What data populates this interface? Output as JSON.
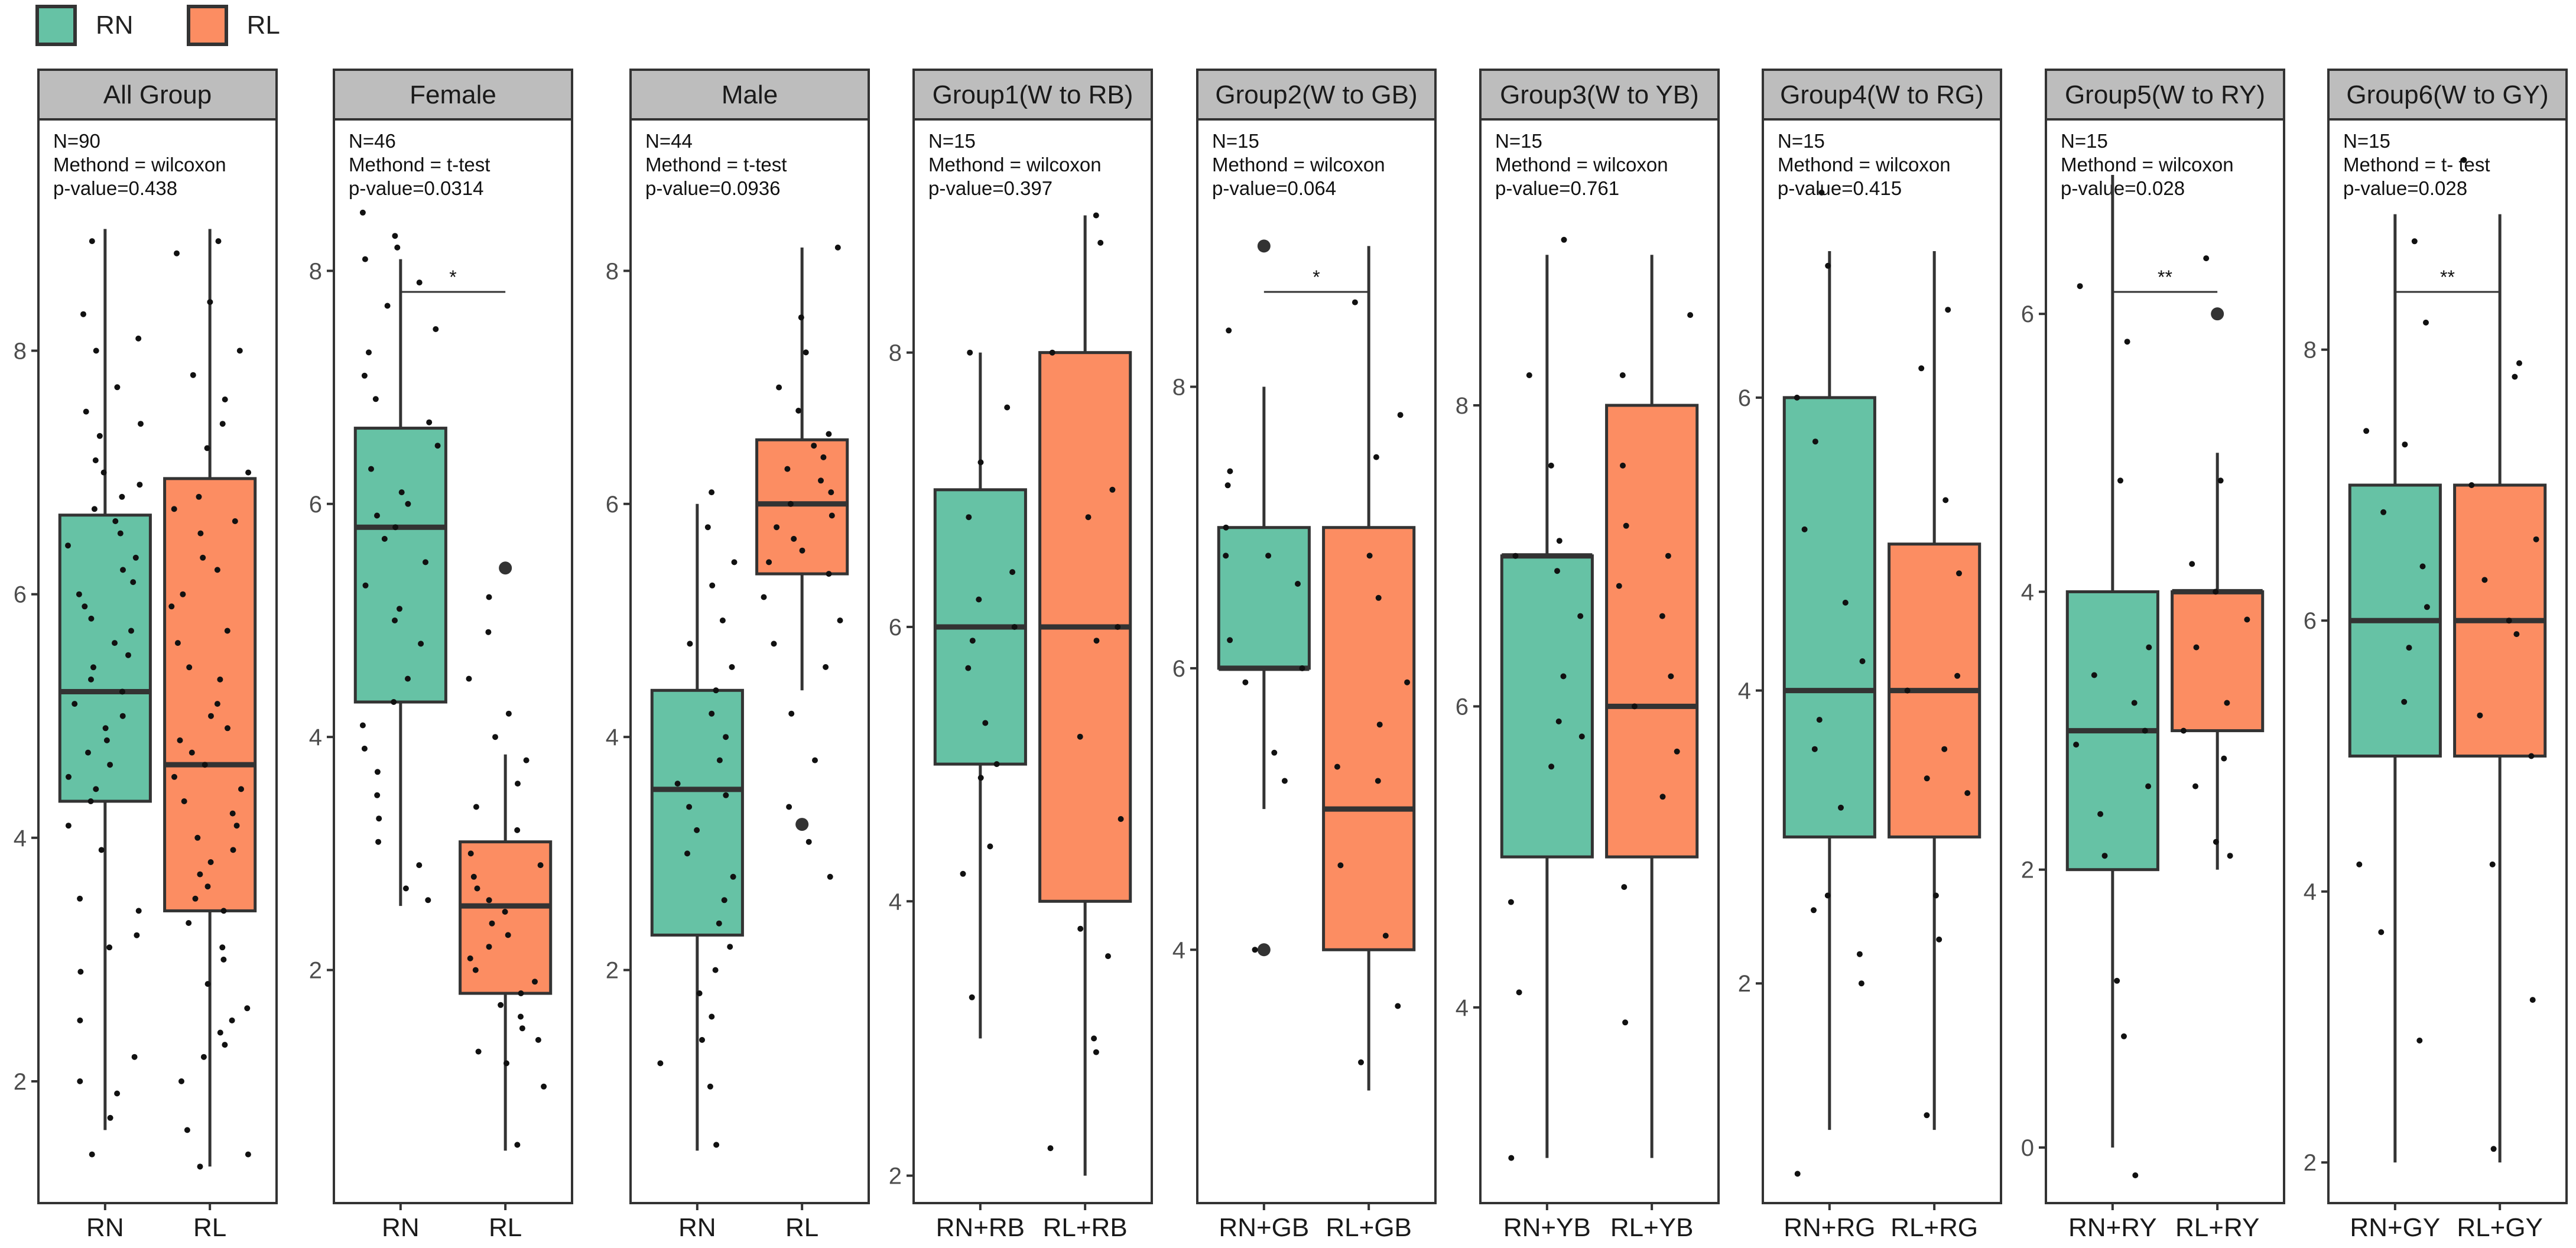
{
  "legend": {
    "items": [
      {
        "label": "RN",
        "color": "#66C2A5"
      },
      {
        "label": "RL",
        "color": "#FC8D62"
      }
    ]
  },
  "chart_data": {
    "type": "boxplot",
    "colors": {
      "RN": "#66C2A5",
      "RL": "#FC8D62"
    },
    "panels": [
      {
        "title": "All Group",
        "n": "N=90",
        "method": "Methond = wilcoxon",
        "pvalue": "p-value=0.438",
        "ylim": [
          1.0,
          9.9
        ],
        "yticks": [
          2,
          4,
          6,
          8
        ],
        "signif": "",
        "categories": [
          "RN",
          "RL"
        ],
        "boxes": [
          {
            "q1": 4.3,
            "median": 5.2,
            "q3": 6.65,
            "whisker_low": 1.6,
            "whisker_high": 9.0,
            "outliers": [],
            "points": [
              8.9,
              8.3,
              8.1,
              8.0,
              7.7,
              7.5,
              7.4,
              7.3,
              7.1,
              7.0,
              6.9,
              6.8,
              6.7,
              6.6,
              6.5,
              6.4,
              6.3,
              6.2,
              6.1,
              6.0,
              5.9,
              5.8,
              5.7,
              5.6,
              5.5,
              5.4,
              5.3,
              5.2,
              5.1,
              5.0,
              4.9,
              4.8,
              4.7,
              4.6,
              4.5,
              4.4,
              4.3,
              4.1,
              3.9,
              3.5,
              3.4,
              3.2,
              3.1,
              2.9,
              2.5,
              2.2,
              2.0,
              1.9,
              1.7,
              1.4
            ]
          },
          {
            "q1": 3.4,
            "median": 4.6,
            "q3": 6.95,
            "whisker_low": 1.3,
            "whisker_high": 9.0,
            "outliers": [],
            "points": [
              8.9,
              8.8,
              8.4,
              8.0,
              7.8,
              7.6,
              7.4,
              7.2,
              7.0,
              6.8,
              6.7,
              6.6,
              6.5,
              6.3,
              6.2,
              6.0,
              5.9,
              5.7,
              5.6,
              5.4,
              5.3,
              5.1,
              5.0,
              4.9,
              4.8,
              4.7,
              4.6,
              4.5,
              4.4,
              4.3,
              4.2,
              4.1,
              4.0,
              3.9,
              3.8,
              3.7,
              3.6,
              3.5,
              3.4,
              3.3,
              3.1,
              3.0,
              2.8,
              2.6,
              2.5,
              2.4,
              2.3,
              2.2,
              2.0,
              1.6,
              1.4,
              1.3
            ]
          }
        ]
      },
      {
        "title": "Female",
        "n": "N=46",
        "method": "Methond = t-test",
        "pvalue": "p-value=0.0314",
        "ylim": [
          0.0,
          9.3
        ],
        "yticks": [
          2,
          4,
          6,
          8
        ],
        "signif": "*",
        "categories": [
          "RN",
          "RL"
        ],
        "boxes": [
          {
            "q1": 4.3,
            "median": 5.8,
            "q3": 6.65,
            "whisker_low": 2.55,
            "whisker_high": 8.1,
            "outliers": [],
            "points": [
              8.5,
              8.3,
              8.2,
              8.1,
              7.9,
              7.7,
              7.5,
              7.3,
              7.1,
              6.9,
              6.7,
              6.5,
              6.3,
              6.1,
              6.0,
              5.9,
              5.8,
              5.7,
              5.5,
              5.3,
              5.1,
              5.0,
              4.8,
              4.5,
              4.3,
              4.1,
              3.9,
              3.7,
              3.5,
              3.3,
              3.1,
              2.9,
              2.7,
              2.6
            ]
          },
          {
            "q1": 1.8,
            "median": 2.55,
            "q3": 3.1,
            "whisker_low": 0.45,
            "whisker_high": 3.85,
            "outliers": [
              5.45
            ],
            "points": [
              5.2,
              4.9,
              4.5,
              4.2,
              4.0,
              3.8,
              3.6,
              3.4,
              3.2,
              3.0,
              2.9,
              2.8,
              2.7,
              2.6,
              2.5,
              2.4,
              2.3,
              2.2,
              2.1,
              2.0,
              1.9,
              1.8,
              1.7,
              1.6,
              1.5,
              1.4,
              1.3,
              1.2,
              1.0,
              0.5
            ]
          }
        ]
      },
      {
        "title": "Male",
        "n": "N=44",
        "method": "Methond = t-test",
        "pvalue": "p-value=0.0936",
        "ylim": [
          0.0,
          9.3
        ],
        "yticks": [
          2,
          4,
          6,
          8
        ],
        "signif": "",
        "categories": [
          "RN",
          "RL"
        ],
        "boxes": [
          {
            "q1": 2.3,
            "median": 3.55,
            "q3": 4.4,
            "whisker_low": 0.45,
            "whisker_high": 6.0,
            "outliers": [],
            "points": [
              6.1,
              5.8,
              5.5,
              5.3,
              5.0,
              4.8,
              4.6,
              4.4,
              4.2,
              4.0,
              3.8,
              3.6,
              3.5,
              3.4,
              3.2,
              3.0,
              2.8,
              2.6,
              2.4,
              2.2,
              2.0,
              1.8,
              1.6,
              1.4,
              1.2,
              1.0,
              0.5
            ]
          },
          {
            "q1": 5.4,
            "median": 6.0,
            "q3": 6.55,
            "whisker_low": 4.4,
            "whisker_high": 8.2,
            "outliers": [
              3.25
            ],
            "points": [
              8.2,
              7.6,
              7.3,
              7.0,
              6.8,
              6.6,
              6.5,
              6.4,
              6.3,
              6.2,
              6.1,
              6.0,
              5.9,
              5.8,
              5.7,
              5.6,
              5.5,
              5.4,
              5.2,
              5.0,
              4.8,
              4.6,
              4.2,
              3.8,
              3.4,
              3.1,
              2.8
            ]
          }
        ]
      },
      {
        "title": "Group1(W to RB)",
        "n": "N=15",
        "method": "Methond = wilcoxon",
        "pvalue": "p-value=0.397",
        "ylim": [
          1.8,
          9.7
        ],
        "yticks": [
          2,
          4,
          6,
          8
        ],
        "signif": "",
        "categories": [
          "RN+RB",
          "RL+RB"
        ],
        "boxes": [
          {
            "q1": 5.0,
            "median": 6.0,
            "q3": 7.0,
            "whisker_low": 3.0,
            "whisker_high": 8.0,
            "outliers": [],
            "points": [
              8.0,
              7.6,
              7.2,
              6.8,
              6.4,
              6.2,
              6.0,
              5.9,
              5.7,
              5.3,
              5.0,
              4.9,
              4.4,
              4.2,
              3.3
            ]
          },
          {
            "q1": 4.0,
            "median": 6.0,
            "q3": 8.0,
            "whisker_low": 2.0,
            "whisker_high": 9.0,
            "outliers": [],
            "points": [
              9.0,
              8.8,
              8.0,
              7.0,
              6.8,
              6.0,
              5.9,
              5.2,
              4.6,
              3.8,
              3.6,
              3.0,
              2.9,
              2.2
            ]
          }
        ]
      },
      {
        "title": "Group2(W to GB)",
        "n": "N=15",
        "method": "Methond = wilcoxon",
        "pvalue": "p-value=0.064",
        "ylim": [
          2.2,
          9.9
        ],
        "yticks": [
          4,
          6,
          8
        ],
        "signif": "*",
        "categories": [
          "RN+GB",
          "RL+GB"
        ],
        "boxes": [
          {
            "q1": 6.0,
            "median": 6.0,
            "q3": 7.0,
            "whisker_low": 5.0,
            "whisker_high": 8.0,
            "outliers": [
              9.0,
              4.0
            ],
            "points": [
              8.4,
              7.4,
              7.3,
              7.0,
              6.8,
              6.8,
              6.6,
              6.2,
              6.0,
              5.9,
              5.4,
              5.2,
              4.0
            ]
          },
          {
            "q1": 4.0,
            "median": 5.0,
            "q3": 7.0,
            "whisker_low": 3.0,
            "whisker_high": 9.0,
            "outliers": [],
            "points": [
              8.6,
              7.8,
              7.5,
              6.8,
              6.5,
              5.9,
              5.6,
              5.3,
              5.2,
              4.6,
              4.1,
              3.6,
              3.2
            ]
          }
        ]
      },
      {
        "title": "Group3(W to YB)",
        "n": "N=15",
        "method": "Methond = wilcoxon",
        "pvalue": "p-value=0.761",
        "ylim": [
          2.7,
          9.9
        ],
        "yticks": [
          4,
          6,
          8
        ],
        "signif": "",
        "categories": [
          "RN+YB",
          "RL+YB"
        ],
        "boxes": [
          {
            "q1": 5.0,
            "median": 7.0,
            "q3": 7.0,
            "whisker_low": 3.0,
            "whisker_high": 9.0,
            "outliers": [],
            "points": [
              9.1,
              8.2,
              7.6,
              7.1,
              7.0,
              6.9,
              6.6,
              6.2,
              5.9,
              5.8,
              5.6,
              4.7,
              4.1,
              3.0
            ]
          },
          {
            "q1": 5.0,
            "median": 6.0,
            "q3": 8.0,
            "whisker_low": 3.0,
            "whisker_high": 9.0,
            "outliers": [],
            "points": [
              8.6,
              8.2,
              7.6,
              7.2,
              7.0,
              6.8,
              6.6,
              6.2,
              6.0,
              5.7,
              5.4,
              4.8,
              3.9
            ]
          }
        ]
      },
      {
        "title": "Group4(W to RG)",
        "n": "N=15",
        "method": "Methond = wilcoxon",
        "pvalue": "p-value=0.415",
        "ylim": [
          0.5,
          7.9
        ],
        "yticks": [
          2,
          4,
          6
        ],
        "signif": "",
        "categories": [
          "RN+RG",
          "RL+RG"
        ],
        "boxes": [
          {
            "q1": 3.0,
            "median": 4.0,
            "q3": 6.0,
            "whisker_low": 1.0,
            "whisker_high": 7.0,
            "outliers": [],
            "points": [
              7.4,
              6.9,
              6.0,
              5.7,
              5.1,
              4.6,
              4.2,
              3.8,
              3.6,
              3.2,
              2.6,
              2.5,
              2.2,
              2.0,
              0.7
            ]
          },
          {
            "q1": 3.0,
            "median": 4.0,
            "q3": 5.0,
            "whisker_low": 1.0,
            "whisker_high": 7.0,
            "outliers": [],
            "points": [
              6.6,
              6.2,
              5.3,
              4.8,
              4.1,
              4.0,
              3.6,
              3.4,
              3.3,
              2.6,
              2.3,
              1.1
            ]
          }
        ]
      },
      {
        "title": "Group5(W to RY)",
        "n": "N=15",
        "method": "Methond = wilcoxon",
        "pvalue": "p-value=0.028",
        "ylim": [
          -0.4,
          7.4
        ],
        "yticks": [
          0,
          2,
          4,
          6
        ],
        "signif": "**",
        "categories": [
          "RN+RY",
          "RL+RY"
        ],
        "boxes": [
          {
            "q1": 2.0,
            "median": 3.0,
            "q3": 4.0,
            "whisker_low": 0.0,
            "whisker_high": 7.0,
            "outliers": [],
            "points": [
              6.2,
              5.8,
              4.8,
              3.6,
              3.4,
              3.2,
              3.0,
              2.9,
              2.6,
              2.4,
              2.1,
              1.2,
              0.8,
              -0.2
            ]
          },
          {
            "q1": 3.0,
            "median": 4.0,
            "q3": 4.0,
            "whisker_low": 2.0,
            "whisker_high": 5.0,
            "outliers": [
              6.0
            ],
            "points": [
              6.4,
              4.8,
              4.2,
              4.0,
              3.8,
              3.6,
              3.2,
              3.0,
              2.8,
              2.6,
              2.2,
              2.1
            ]
          }
        ]
      },
      {
        "title": "Group6(W to GY)",
        "n": "N=15",
        "method": "Methond = t- test",
        "pvalue": "p-value=0.028",
        "ylim": [
          1.7,
          9.7
        ],
        "yticks": [
          2,
          4,
          6,
          8
        ],
        "signif": "**",
        "categories": [
          "RN+GY",
          "RL+GY"
        ],
        "boxes": [
          {
            "q1": 5.0,
            "median": 6.0,
            "q3": 7.0,
            "whisker_low": 2.0,
            "whisker_high": 9.0,
            "outliers": [],
            "points": [
              8.8,
              8.2,
              7.4,
              7.3,
              6.8,
              6.4,
              6.1,
              5.8,
              5.4,
              4.2,
              3.7,
              2.9
            ]
          },
          {
            "q1": 5.0,
            "median": 6.0,
            "q3": 7.0,
            "whisker_low": 2.0,
            "whisker_high": 9.0,
            "outliers": [],
            "points": [
              9.4,
              7.9,
              7.8,
              7.0,
              6.6,
              6.3,
              6.0,
              5.9,
              5.3,
              5.0,
              4.2,
              3.2,
              2.1
            ]
          }
        ]
      }
    ]
  }
}
